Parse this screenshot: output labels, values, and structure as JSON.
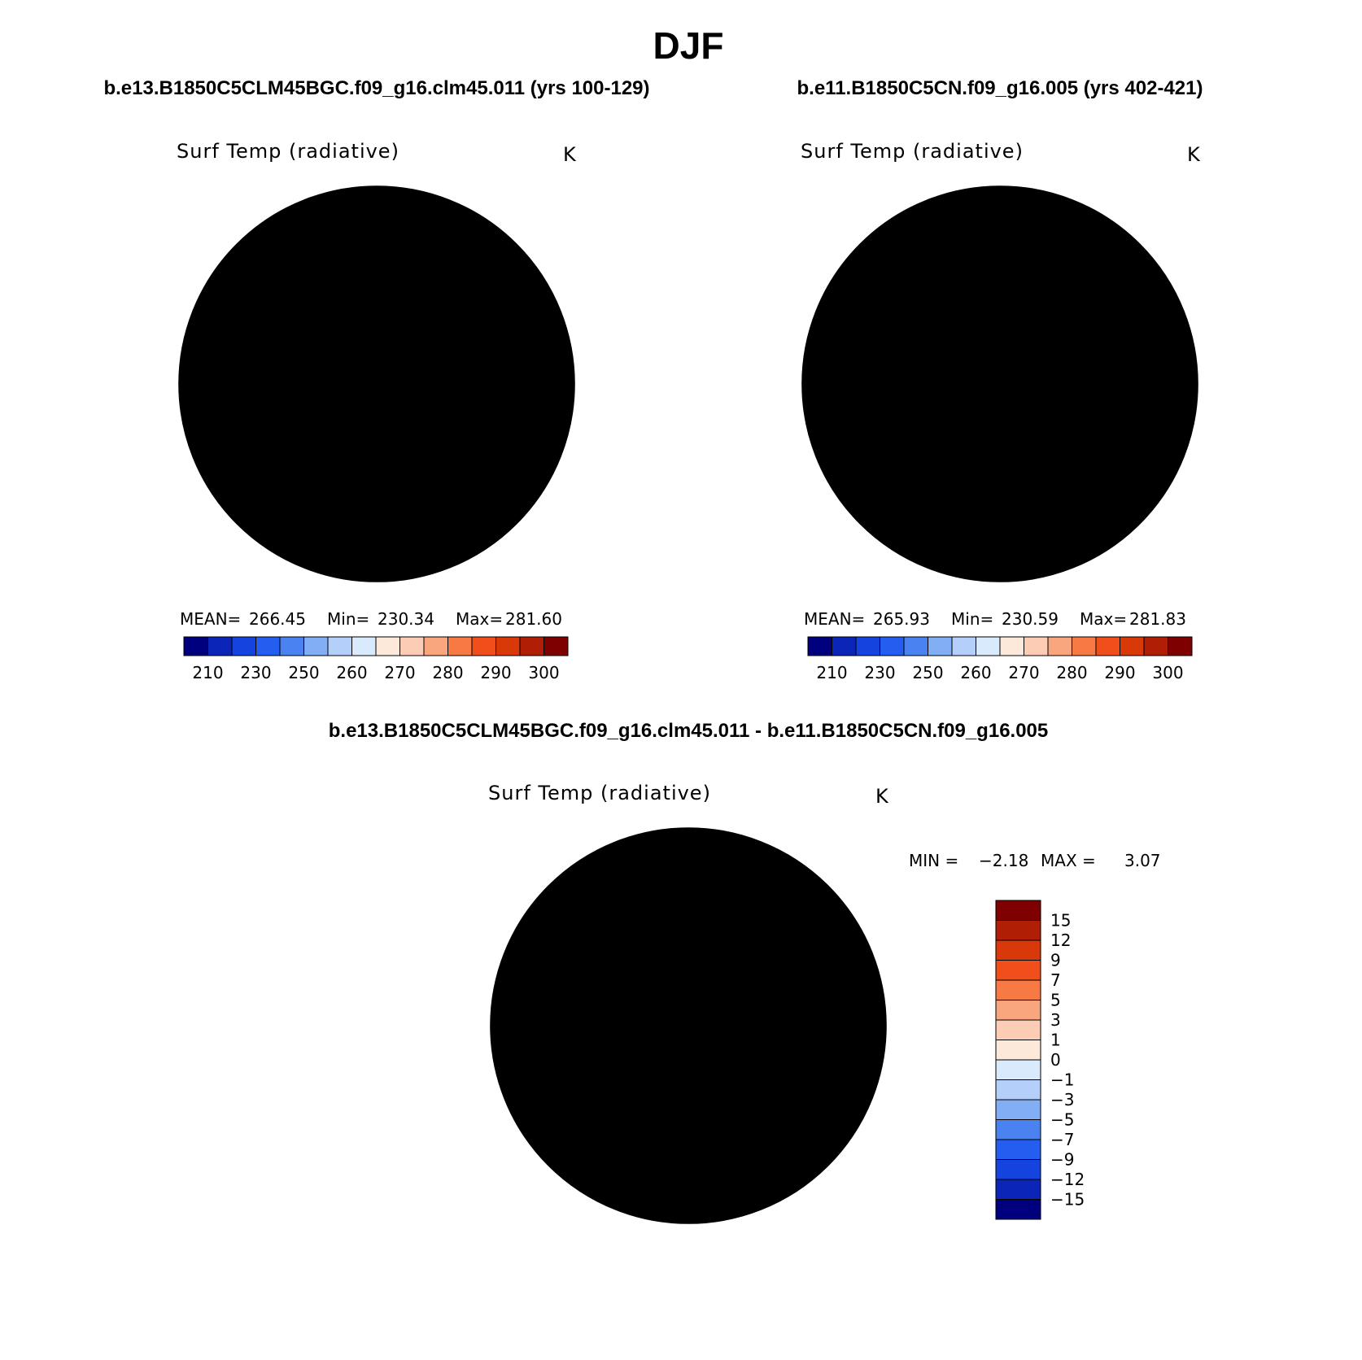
{
  "figure": {
    "season": "DJF",
    "diff_title": "b.e13.B1850C5CLM45BGC.f09_g16.clm45.011 - b.e11.B1850C5CN.f09_g16.005"
  },
  "panels": [
    {
      "case_title": "b.e13.B1850C5CLM45BGC.f09_g16.clm45.011 (yrs 100-129)",
      "variable": "Surf Temp (radiative)",
      "units": "K",
      "stats": {
        "mean_label": "MEAN=",
        "mean": "266.45",
        "min_label": "Min=",
        "min": "230.34",
        "max_label": "Max=",
        "max": "281.60"
      },
      "colorbar": {
        "colors": [
          "#00007f",
          "#0a25b8",
          "#1443e0",
          "#245ef0",
          "#4a82f2",
          "#82aef5",
          "#b3cffa",
          "#d9eafd",
          "#fde9d9",
          "#fcccb5",
          "#f9a67e",
          "#f77a44",
          "#f04f1c",
          "#d93808",
          "#b01e06",
          "#7f0000"
        ],
        "tick_labels": [
          "210",
          "230",
          "250",
          "260",
          "270",
          "280",
          "290",
          "300"
        ]
      },
      "map": {
        "ocean_ring_colors": [
          "#f77a44",
          "#f9a67e",
          "#fcccb5",
          "#fde9d9"
        ],
        "land_colors": [
          "#b3cffa",
          "#82aef5",
          "#4a82f2",
          "#245ef0",
          "#1443e0"
        ]
      }
    },
    {
      "case_title": "b.e11.B1850C5CN.f09_g16.005 (yrs 402-421)",
      "variable": "Surf Temp (radiative)",
      "units": "K",
      "stats": {
        "mean_label": "MEAN=",
        "mean": "265.93",
        "min_label": "Min=",
        "min": "230.59",
        "max_label": "Max=",
        "max": "281.83"
      },
      "colorbar": {
        "colors": [
          "#00007f",
          "#0a25b8",
          "#1443e0",
          "#245ef0",
          "#4a82f2",
          "#82aef5",
          "#b3cffa",
          "#d9eafd",
          "#fde9d9",
          "#fcccb5",
          "#f9a67e",
          "#f77a44",
          "#f04f1c",
          "#d93808",
          "#b01e06",
          "#7f0000"
        ],
        "tick_labels": [
          "210",
          "230",
          "250",
          "260",
          "270",
          "280",
          "290",
          "300"
        ]
      },
      "map": {
        "ocean_ring_colors": [
          "#f77a44",
          "#f9a67e",
          "#fcccb5",
          "#fde9d9"
        ],
        "land_colors": [
          "#b3cffa",
          "#82aef5",
          "#4a82f2",
          "#245ef0",
          "#1443e0"
        ]
      }
    }
  ],
  "difference": {
    "variable": "Surf Temp (radiative)",
    "units": "K",
    "stats": {
      "min_label": "MIN =",
      "min": "−2.18",
      "max_label": "MAX =",
      "max": "3.07"
    },
    "colorbar": {
      "colors_top_to_bottom": [
        "#7f0000",
        "#b01e06",
        "#d93808",
        "#f04f1c",
        "#f77a44",
        "#f9a67e",
        "#fcccb5",
        "#fde9d9",
        "#d9eafd",
        "#b3cffa",
        "#82aef5",
        "#4a82f2",
        "#245ef0",
        "#1443e0",
        "#0a25b8",
        "#00007f"
      ],
      "tick_labels_top_to_bottom": [
        "15",
        "12",
        "9",
        "7",
        "5",
        "3",
        "1",
        "0",
        "−1",
        "−3",
        "−5",
        "−7",
        "−9",
        "−12",
        "−15"
      ]
    },
    "map": {
      "background": "#fde9d9",
      "positive": "#fcccb5",
      "negative": "#d9eafd",
      "strong_negative": "#b3cffa"
    }
  }
}
